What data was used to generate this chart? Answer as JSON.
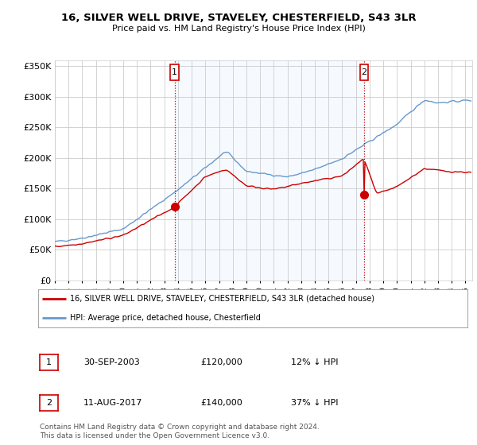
{
  "title": "16, SILVER WELL DRIVE, STAVELEY, CHESTERFIELD, S43 3LR",
  "subtitle": "Price paid vs. HM Land Registry's House Price Index (HPI)",
  "legend_label_red": "16, SILVER WELL DRIVE, STAVELEY, CHESTERFIELD, S43 3LR (detached house)",
  "legend_label_blue": "HPI: Average price, detached house, Chesterfield",
  "transaction1_date": "30-SEP-2003",
  "transaction1_price": "£120,000",
  "transaction1_hpi": "12% ↓ HPI",
  "transaction2_date": "11-AUG-2017",
  "transaction2_price": "£140,000",
  "transaction2_hpi": "37% ↓ HPI",
  "footer": "Contains HM Land Registry data © Crown copyright and database right 2024.\nThis data is licensed under the Open Government Licence v3.0.",
  "xmin": 1995.0,
  "xmax": 2025.5,
  "ymin": 0,
  "ymax": 360000,
  "yticks": [
    0,
    50000,
    100000,
    150000,
    200000,
    250000,
    300000,
    350000
  ],
  "marker1_x": 2003.75,
  "marker1_y": 120000,
  "marker2_x": 2017.6,
  "marker2_y": 140000,
  "vline1_x": 2003.75,
  "vline2_x": 2017.6,
  "background_color": "#ffffff",
  "plot_bg_color": "#ffffff",
  "fill_color": "#ddeeff",
  "grid_color": "#cccccc",
  "red_color": "#cc0000",
  "blue_color": "#6699cc"
}
